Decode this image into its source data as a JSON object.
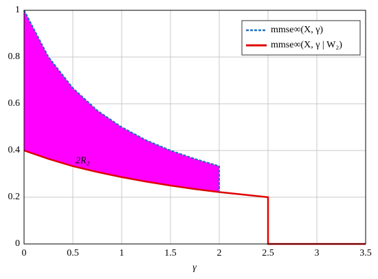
{
  "chart_data": {
    "type": "line",
    "x": [
      0,
      0.25,
      0.5,
      0.75,
      1,
      1.25,
      1.5,
      1.75,
      2,
      2,
      2.5,
      2.5,
      3.5
    ],
    "series": [
      {
        "name": "mmse∞(X, γ)",
        "color": "#1f6fbf",
        "dash": true,
        "values": [
          1,
          0.8,
          0.667,
          0.571,
          0.5,
          0.444,
          0.4,
          0.364,
          0.333,
          0.222,
          null,
          null,
          null
        ]
      },
      {
        "name": "mmse∞(X, γ | W₂)",
        "color": "#e00000",
        "dash": false,
        "values": [
          0.4,
          0.364,
          0.333,
          0.308,
          0.286,
          0.267,
          0.25,
          0.235,
          0.222,
          0.222,
          0.2,
          0,
          0
        ]
      }
    ],
    "fill_color": "#ff00ff",
    "annotation": "2R₂",
    "xlabel": "γ",
    "xlim": [
      0,
      3.5
    ],
    "xticks": [
      0,
      0.5,
      1,
      1.5,
      2,
      2.5,
      3,
      3.5
    ],
    "ylim": [
      0,
      1
    ],
    "yticks": [
      0,
      0.2,
      0.4,
      0.6,
      0.8,
      1
    ],
    "grid": true,
    "legend": "upper-right"
  }
}
